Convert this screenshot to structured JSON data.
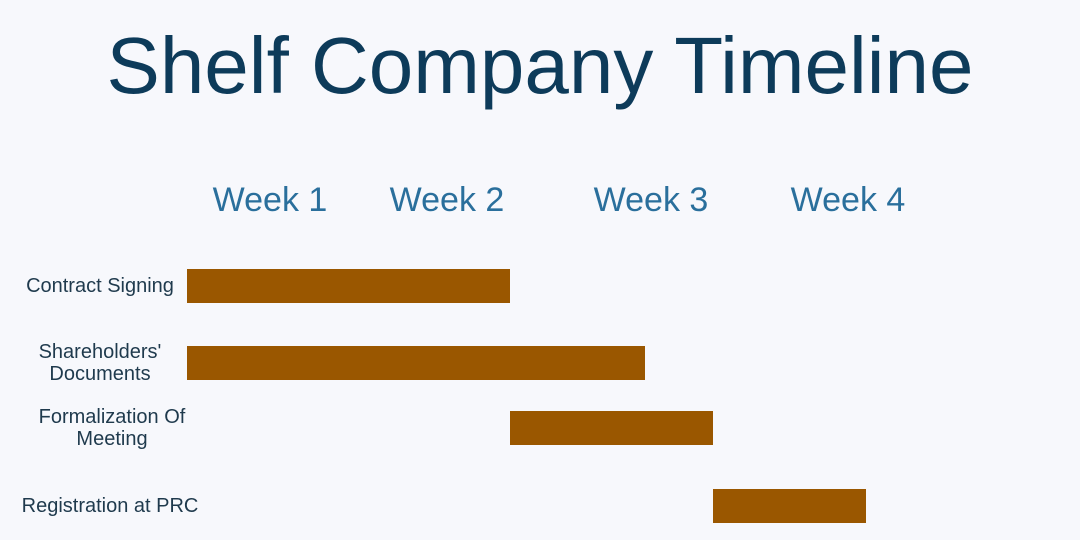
{
  "chart_data": {
    "type": "gantt",
    "title": "Shelf Company Timeline",
    "weeks": [
      "Week 1",
      "Week 2",
      "Week 3",
      "Week 4"
    ],
    "categories": [
      "Contract Signing",
      "Shareholders' Documents",
      "Formalization Of Meeting",
      "Registration at PRC"
    ],
    "start": [
      0,
      0,
      1.9,
      3.1
    ],
    "end": [
      1.9,
      2.7,
      3.1,
      4.0
    ],
    "xlim": [
      0,
      4
    ],
    "color": "#9a5700"
  }
}
